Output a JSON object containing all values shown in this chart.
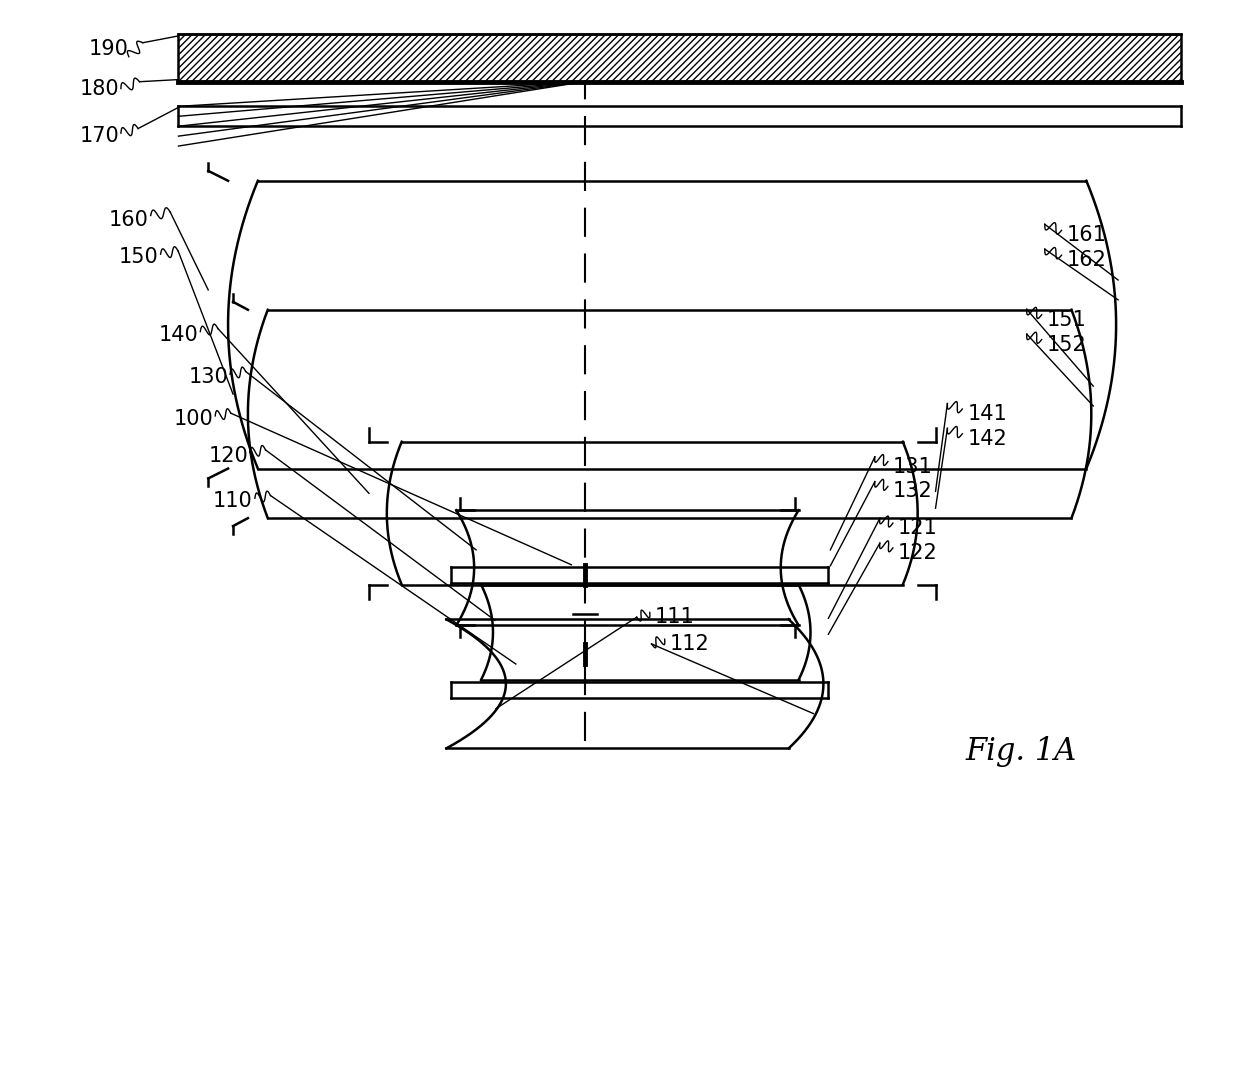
{
  "bg_color": "#ffffff",
  "fig_width": 12.4,
  "fig_height": 10.73,
  "fig_label": "Fig. 1A",
  "lw": 1.8,
  "lw_thick": 3.5,
  "label_fontsize": 15
}
